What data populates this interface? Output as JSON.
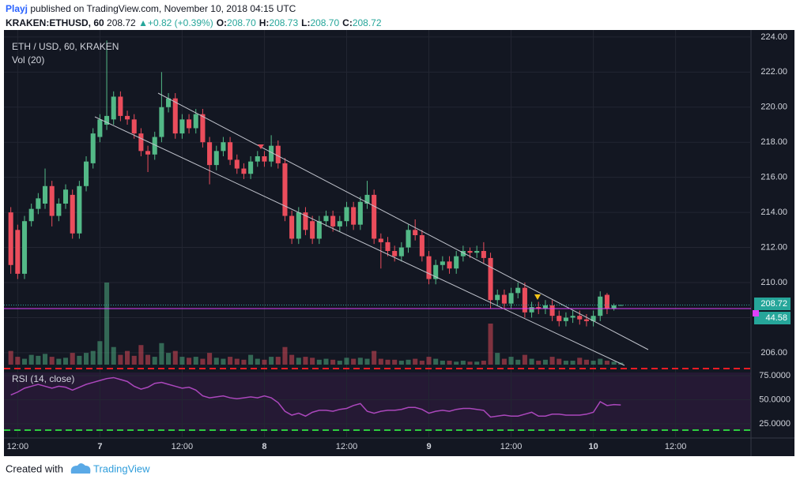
{
  "header": {
    "author": "Playj",
    "published": "published on TradingView.com, November 10, 2018 04:15 UTC"
  },
  "footer": {
    "created": "Created with",
    "brand": "TradingView"
  },
  "chart_data": [
    {
      "type": "candlestick",
      "title": "ETH / USD, 60, KRAKEN",
      "volume_title": "Vol (20)",
      "legend": {
        "symbol": "KRAKEN:ETHUSD, 60",
        "last": "208.72",
        "change": "+0.82 (+0.39%)",
        "items": [
          {
            "label": "O:",
            "value": "208.70"
          },
          {
            "label": "H:",
            "value": "208.73"
          },
          {
            "label": "L:",
            "value": "208.70"
          },
          {
            "label": "C:",
            "value": "208.72"
          }
        ]
      },
      "up_color": "#53b987",
      "down_color": "#eb4d5c",
      "open": [
        214,
        213,
        210.5,
        213.5,
        214.2,
        214.5,
        215.5,
        213.8,
        214.5,
        215,
        212.8,
        215.5,
        216.8,
        218.3,
        219,
        219.3,
        220.6,
        219.5,
        219.3,
        218.5,
        217.5,
        217.3,
        218.3,
        220,
        220.5,
        218.5,
        219.3,
        218.8,
        219.6,
        218,
        216.7,
        217.5,
        218,
        217,
        216.5,
        216.2,
        216.9,
        217.2,
        216.9,
        217.8,
        216.8,
        213.8,
        212.5,
        214,
        213.5,
        212.5,
        213.5,
        213.8,
        213.2,
        213.5,
        214.3,
        213.3,
        214.5,
        215,
        212.5,
        212.3,
        211.8,
        211.5,
        212,
        213,
        212.7,
        211.5,
        210.2,
        211,
        211.2,
        210.8,
        211.5,
        211.8,
        211.7,
        211.8,
        211.4,
        209,
        209.3,
        208.8,
        209.4,
        209.7,
        208.3,
        208.6,
        208.5,
        208.7,
        208.1,
        207.8,
        208,
        208.1,
        207.9,
        207.8,
        208.1,
        209.3,
        208.5,
        208.7
      ],
      "high": [
        214.3,
        213.3,
        213.8,
        214.5,
        215.1,
        216.5,
        215.8,
        214.8,
        215.6,
        215.3,
        215.8,
        217.2,
        218.8,
        219.6,
        223.8,
        220.9,
        220.9,
        219.8,
        219.6,
        218.8,
        217.8,
        218.6,
        222,
        220.8,
        220.8,
        219.6,
        219.6,
        219.9,
        219.9,
        218.3,
        217.8,
        218.3,
        218.3,
        217.3,
        216.8,
        217.2,
        217.5,
        217.5,
        218.4,
        218.1,
        217.1,
        214.1,
        214.3,
        214.3,
        213.8,
        213.8,
        214.1,
        214.1,
        213.8,
        214.6,
        214.6,
        214.9,
        215.8,
        215.3,
        212.8,
        212.6,
        212.1,
        212.3,
        213.3,
        213.6,
        213,
        211.8,
        211.3,
        211.5,
        211.5,
        211.8,
        212.1,
        212,
        212.1,
        212.3,
        211.7,
        209.6,
        209.6,
        209.7,
        210,
        210,
        208.9,
        208.9,
        209,
        209,
        208.4,
        208.3,
        208.4,
        208.4,
        208.2,
        208.4,
        209.5,
        209.4,
        208.8,
        208.73
      ],
      "low": [
        210.5,
        210.2,
        210.2,
        213.2,
        213.9,
        214.2,
        213.2,
        213.5,
        214.2,
        212.5,
        212.5,
        215.2,
        216.5,
        218,
        218.7,
        219,
        219.2,
        219,
        218.2,
        217.2,
        216.3,
        217,
        218,
        219.7,
        218.2,
        218.2,
        218.5,
        218.5,
        217.7,
        215.6,
        216.4,
        217.2,
        216.7,
        216.2,
        215.9,
        215.9,
        216.6,
        216.6,
        216.6,
        216.5,
        213.5,
        212.2,
        212.2,
        212.7,
        212.2,
        212.2,
        213.2,
        212.9,
        212.9,
        213.2,
        213,
        213,
        214.2,
        212.2,
        210.8,
        211.5,
        211.2,
        211.2,
        211.7,
        212.4,
        211.2,
        209.9,
        209.9,
        210.7,
        210.5,
        210.5,
        211.2,
        211.4,
        211.4,
        211.1,
        208.5,
        208.7,
        208.5,
        208.5,
        209.1,
        208,
        208,
        208.2,
        208.2,
        207.8,
        207.5,
        207.5,
        207.7,
        207.6,
        207.5,
        207.5,
        207.8,
        208.2,
        208.4,
        208.7
      ],
      "close": [
        211,
        210.5,
        213.5,
        214.2,
        214.8,
        215.5,
        213.8,
        214.5,
        215.3,
        212.8,
        215.5,
        216.9,
        218.5,
        219.3,
        219.5,
        220.6,
        219.5,
        219.3,
        218.5,
        217.5,
        217.3,
        218.3,
        220,
        220.5,
        218.5,
        219.3,
        218.8,
        219.6,
        218,
        216.7,
        217.5,
        218,
        217,
        216.5,
        216.2,
        216.9,
        217.2,
        216.9,
        217.8,
        216.8,
        213.8,
        212.5,
        214,
        213,
        212.5,
        213.5,
        213.8,
        213.2,
        213.5,
        214.3,
        213.3,
        214.6,
        215,
        212.5,
        212.3,
        211.8,
        211.5,
        212,
        213,
        212.7,
        211.5,
        210.2,
        211,
        211.2,
        210.8,
        211.5,
        211.8,
        211.7,
        211.8,
        211.4,
        209,
        209.3,
        208.8,
        209.4,
        209.7,
        208.3,
        208.6,
        208.5,
        208.7,
        208.1,
        207.8,
        208,
        208.1,
        207.9,
        207.8,
        208.1,
        209.2,
        208.5,
        208.7,
        208.72
      ],
      "volume": [
        700,
        400,
        300,
        500,
        450,
        550,
        400,
        300,
        350,
        600,
        450,
        600,
        700,
        1200,
        4200,
        900,
        500,
        700,
        450,
        1000,
        500,
        400,
        1100,
        600,
        700,
        400,
        350,
        400,
        300,
        600,
        350,
        300,
        400,
        300,
        250,
        500,
        300,
        250,
        400,
        400,
        900,
        500,
        350,
        400,
        350,
        250,
        300,
        250,
        200,
        350,
        300,
        350,
        300,
        700,
        300,
        250,
        250,
        200,
        250,
        300,
        200,
        400,
        300,
        200,
        200,
        150,
        200,
        150,
        150,
        200,
        2100,
        600,
        300,
        400,
        250,
        500,
        300,
        200,
        250,
        400,
        300,
        200,
        200,
        350,
        250,
        200,
        300,
        200,
        150,
        100
      ],
      "xlim": [
        -1,
        108
      ],
      "xticks": [
        {
          "value": 1,
          "label": "12:00"
        },
        {
          "value": 13,
          "label": "7"
        },
        {
          "value": 25,
          "label": "12:00"
        },
        {
          "value": 37,
          "label": "8"
        },
        {
          "value": 49,
          "label": "12:00"
        },
        {
          "value": 61,
          "label": "9"
        },
        {
          "value": 73,
          "label": "12:00"
        },
        {
          "value": 85,
          "label": "10"
        },
        {
          "value": 97,
          "label": "12:00"
        }
      ],
      "ylim": [
        205.32,
        224.4
      ],
      "yticks": [
        {
          "value": 206,
          "label": "206.00"
        },
        {
          "value": 208,
          "label": "208.00"
        },
        {
          "value": 210,
          "label": "210.00"
        },
        {
          "value": 212,
          "label": "212.00"
        },
        {
          "value": 214,
          "label": "214.00"
        },
        {
          "value": 216,
          "label": "216.00"
        },
        {
          "value": 218,
          "label": "218.00"
        },
        {
          "value": 220,
          "label": "220.00"
        },
        {
          "value": 222,
          "label": "222.00"
        },
        {
          "value": 224,
          "label": "224.00"
        }
      ],
      "grid": true
    },
    {
      "type": "line",
      "title": "RSI (14, close)",
      "color": "#ab47bc",
      "values": [
        55,
        58,
        62,
        64,
        66,
        64,
        62,
        64,
        63,
        60,
        63,
        66,
        68,
        70,
        72,
        73,
        71,
        69,
        64,
        61,
        63,
        67,
        68,
        66,
        64,
        62,
        63,
        60,
        54,
        52,
        53,
        54,
        52,
        51,
        52,
        53,
        52,
        54,
        52,
        47,
        38,
        34,
        36,
        33,
        37,
        39,
        39,
        38,
        40,
        41,
        44,
        46,
        38,
        36,
        38,
        39,
        39,
        40,
        42,
        42,
        40,
        36,
        38,
        39,
        38,
        40,
        41,
        41,
        40,
        39,
        32,
        33,
        34,
        33,
        33,
        35,
        37,
        33,
        33,
        35,
        35,
        34,
        34,
        34,
        35,
        37,
        48,
        44,
        45,
        44.58
      ],
      "ylim": [
        12.7,
        78.3
      ],
      "yticks": [
        {
          "value": 75,
          "label": "75.0000"
        },
        {
          "value": 50,
          "label": "50.0000"
        },
        {
          "value": 25,
          "label": "25.0000"
        }
      ]
    }
  ]
}
